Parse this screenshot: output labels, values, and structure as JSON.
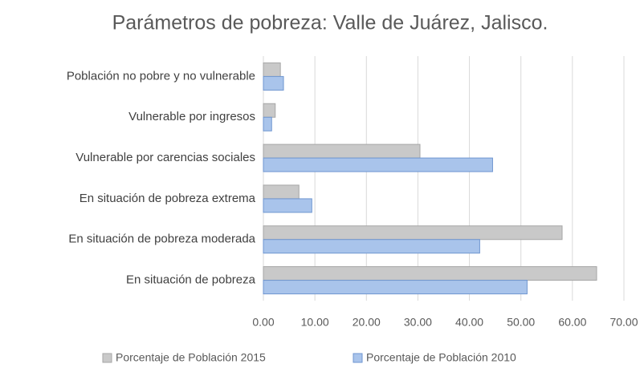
{
  "chart_data": {
    "type": "barh",
    "title": "Parámetros de pobreza: Valle de Juárez, Jalisco.",
    "categories": [
      "Población no pobre y no vulnerable",
      "Vulnerable por ingresos",
      "Vulnerable por carencias sociales",
      "En situación de pobreza extrema",
      "En situación de pobreza moderada",
      "En situación de pobreza"
    ],
    "series": [
      {
        "name": "Porcentaje de Población 2015",
        "color": "#c9c9c9",
        "values": [
          3.3,
          2.3,
          30.4,
          6.9,
          58.0,
          64.7
        ]
      },
      {
        "name": "Porcentaje de Población 2010",
        "color": "#a9c4eb",
        "values": [
          3.9,
          1.6,
          44.5,
          9.4,
          42.0,
          51.2
        ]
      }
    ],
    "xlim": [
      0,
      70
    ],
    "xticks": [
      {
        "value": 0,
        "label": "0.00"
      },
      {
        "value": 10,
        "label": "10.00"
      },
      {
        "value": 20,
        "label": "20.00"
      },
      {
        "value": 30,
        "label": "30.00"
      },
      {
        "value": 40,
        "label": "40.00"
      },
      {
        "value": 50,
        "label": "50.00"
      },
      {
        "value": 60,
        "label": "60.00"
      },
      {
        "value": 70,
        "label": "70.00"
      }
    ],
    "grid": true,
    "legend": "bottom"
  }
}
